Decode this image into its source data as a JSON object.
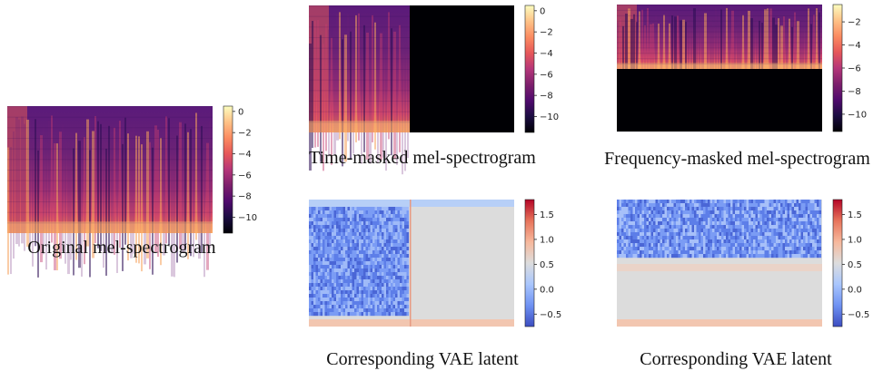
{
  "chart_data": [
    {
      "type": "heatmap",
      "id": "original",
      "caption": "Original mel-spectrogram",
      "colormap": "magma",
      "colorbar": {
        "range": [
          -11.5,
          0.5
        ],
        "ticks": [
          "0",
          "−2",
          "−4",
          "−6",
          "−8",
          "−10"
        ],
        "values": [
          0,
          -2,
          -4,
          -6,
          -8,
          -10
        ]
      },
      "mask": "none"
    },
    {
      "type": "heatmap",
      "id": "time-masked",
      "caption": "Time-masked mel-spectrogram",
      "colormap": "magma",
      "colorbar": {
        "range": [
          -11.5,
          0.5
        ],
        "ticks": [
          "0",
          "−2",
          "−4",
          "−6",
          "−8",
          "−10"
        ],
        "values": [
          0,
          -2,
          -4,
          -6,
          -8,
          -10
        ]
      },
      "mask": "time",
      "mask_fraction": 0.51
    },
    {
      "type": "heatmap",
      "id": "freq-masked",
      "caption": "Frequency-masked mel-spectrogram",
      "colormap": "magma",
      "colorbar": {
        "range": [
          -11.5,
          -0.5
        ],
        "ticks": [
          "−2",
          "−4",
          "−6",
          "−8",
          "−10"
        ],
        "values": [
          -2,
          -4,
          -6,
          -8,
          -10
        ]
      },
      "mask": "frequency",
      "mask_fraction": 0.49
    },
    {
      "type": "heatmap",
      "id": "vae-time",
      "caption": "Corresponding VAE latent",
      "colormap": "coolwarm",
      "colorbar": {
        "range": [
          -0.75,
          1.8
        ],
        "ticks": [
          "1.5",
          "1.0",
          "0.5",
          "0.0",
          "−0.5"
        ],
        "values": [
          1.5,
          1.0,
          0.5,
          0.0,
          -0.5
        ]
      },
      "mask": "time",
      "mask_fraction": 0.51
    },
    {
      "type": "heatmap",
      "id": "vae-freq",
      "caption": "Corresponding VAE latent",
      "colormap": "coolwarm",
      "colorbar": {
        "range": [
          -0.75,
          1.8
        ],
        "ticks": [
          "1.5",
          "1.0",
          "0.5",
          "0.0",
          "−0.5"
        ],
        "values": [
          1.5,
          1.0,
          0.5,
          0.0,
          -0.5
        ]
      },
      "mask": "frequency",
      "mask_fraction": 0.49
    }
  ]
}
